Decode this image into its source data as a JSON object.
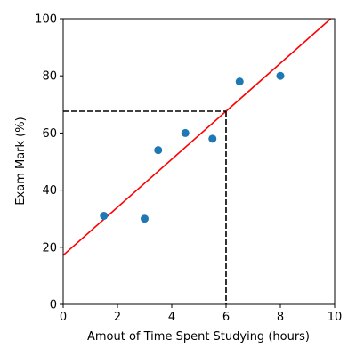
{
  "chart_data": {
    "type": "scatter",
    "title": "",
    "xlabel": "Amout of Time Spent Studying (hours)",
    "ylabel": "Exam Mark (%)",
    "xlim": [
      0,
      10
    ],
    "ylim": [
      0,
      100
    ],
    "xticks": [
      "0",
      "2",
      "4",
      "6",
      "8",
      "10"
    ],
    "yticks": [
      "0",
      "20",
      "40",
      "60",
      "80",
      "100"
    ],
    "grid": false,
    "points": [
      {
        "x": 1.5,
        "y": 31
      },
      {
        "x": 3.0,
        "y": 30
      },
      {
        "x": 3.5,
        "y": 54
      },
      {
        "x": 4.5,
        "y": 60
      },
      {
        "x": 5.5,
        "y": 58
      },
      {
        "x": 6.5,
        "y": 78
      },
      {
        "x": 8.0,
        "y": 80
      }
    ],
    "regression_line": {
      "intercept": 17.2,
      "slope": 8.4
    },
    "projection": {
      "x": 6,
      "y": 67.6
    },
    "colors": {
      "points": "#1f77b4",
      "regression_line": "#ff0000",
      "projection_lines": "#000000",
      "axes": "#000000"
    }
  }
}
